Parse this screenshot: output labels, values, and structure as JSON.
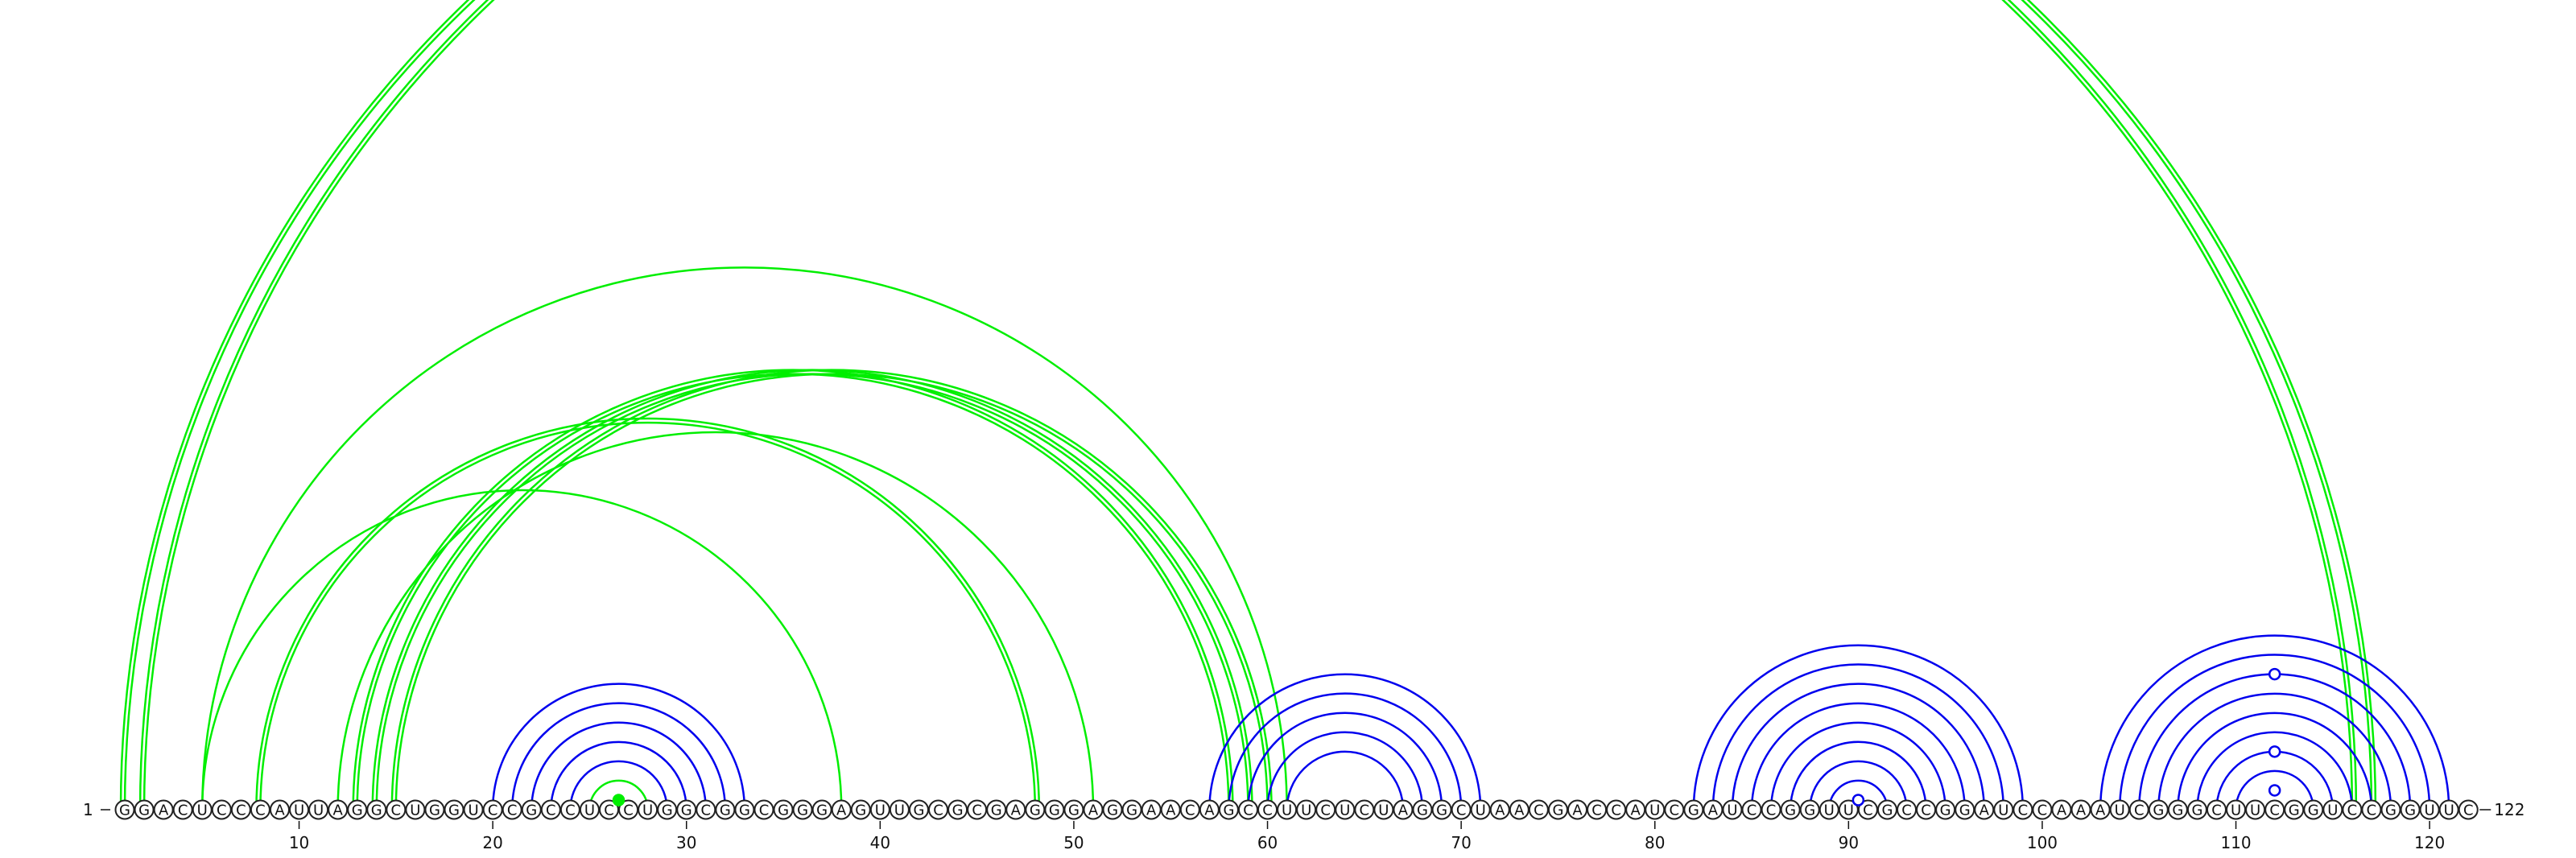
{
  "sequence": "GGACUCCCAUUAGGCUGGUCCGCCUCCUGGCGGCGGGAGUUGCGCGAGGGAGGAACAGCCUUCUCUAGGCUAACGACCAUCGAUCCGGUUCGCCGGAUCCAAAUCGGGCUUCGGUCCGGUUC",
  "start_label": "1",
  "end_label": "122",
  "ticks": [
    10,
    20,
    30,
    40,
    50,
    60,
    70,
    80,
    90,
    100,
    110,
    120
  ],
  "colors": {
    "blue": "#0000ee",
    "green": "#00ee00",
    "text": "#111111"
  },
  "arcs": [
    {
      "i": 1,
      "j": 116,
      "color": "green"
    },
    {
      "i": 1,
      "j": 116,
      "color": "green",
      "offset": 1
    },
    {
      "i": 2,
      "j": 117,
      "color": "green"
    },
    {
      "i": 2,
      "j": 117,
      "color": "green",
      "offset": 1
    },
    {
      "i": 5,
      "j": 61,
      "color": "green"
    },
    {
      "i": 5,
      "j": 38,
      "color": "green"
    },
    {
      "i": 8,
      "j": 48,
      "color": "green"
    },
    {
      "i": 8,
      "j": 48,
      "color": "green",
      "offset": 1
    },
    {
      "i": 12,
      "j": 51,
      "color": "green"
    },
    {
      "i": 13,
      "j": 58,
      "color": "green"
    },
    {
      "i": 13,
      "j": 58,
      "color": "green",
      "offset": 1
    },
    {
      "i": 14,
      "j": 59,
      "color": "green"
    },
    {
      "i": 14,
      "j": 59,
      "color": "green",
      "offset": 1
    },
    {
      "i": 15,
      "j": 60,
      "color": "green"
    },
    {
      "i": 15,
      "j": 60,
      "color": "green",
      "offset": 1
    },
    {
      "i": 25,
      "j": 28,
      "color": "green"
    },
    {
      "i": 20,
      "j": 33,
      "color": "blue"
    },
    {
      "i": 21,
      "j": 32,
      "color": "blue"
    },
    {
      "i": 22,
      "j": 31,
      "color": "blue"
    },
    {
      "i": 23,
      "j": 30,
      "color": "blue"
    },
    {
      "i": 24,
      "j": 29,
      "color": "blue"
    },
    {
      "i": 57,
      "j": 71,
      "color": "blue"
    },
    {
      "i": 58,
      "j": 70,
      "color": "blue"
    },
    {
      "i": 59,
      "j": 69,
      "color": "blue"
    },
    {
      "i": 60,
      "j": 68,
      "color": "blue"
    },
    {
      "i": 61,
      "j": 67,
      "color": "blue"
    },
    {
      "i": 82,
      "j": 99,
      "color": "blue"
    },
    {
      "i": 83,
      "j": 98,
      "color": "blue"
    },
    {
      "i": 84,
      "j": 97,
      "color": "blue"
    },
    {
      "i": 85,
      "j": 96,
      "color": "blue"
    },
    {
      "i": 86,
      "j": 95,
      "color": "blue"
    },
    {
      "i": 87,
      "j": 94,
      "color": "blue"
    },
    {
      "i": 88,
      "j": 93,
      "color": "blue"
    },
    {
      "i": 89,
      "j": 92,
      "color": "blue"
    },
    {
      "i": 103,
      "j": 121,
      "color": "blue"
    },
    {
      "i": 104,
      "j": 120,
      "color": "blue"
    },
    {
      "i": 105,
      "j": 119,
      "color": "blue"
    },
    {
      "i": 106,
      "j": 118,
      "color": "blue"
    },
    {
      "i": 107,
      "j": 117,
      "color": "blue"
    },
    {
      "i": 108,
      "j": 116,
      "color": "blue"
    },
    {
      "i": 109,
      "j": 115,
      "color": "blue"
    },
    {
      "i": 110,
      "j": 114,
      "color": "blue"
    }
  ],
  "markers": [
    {
      "i": 26,
      "j": 27,
      "color": "green",
      "filled": true
    },
    {
      "i": 90,
      "j": 91,
      "color": "blue",
      "filled": false
    },
    {
      "i": 111,
      "j": 113,
      "color": "blue",
      "filled": false
    },
    {
      "i": 109,
      "j": 115,
      "color": "blue",
      "filled": false
    },
    {
      "i": 105,
      "j": 119,
      "color": "blue",
      "filled": false
    }
  ]
}
